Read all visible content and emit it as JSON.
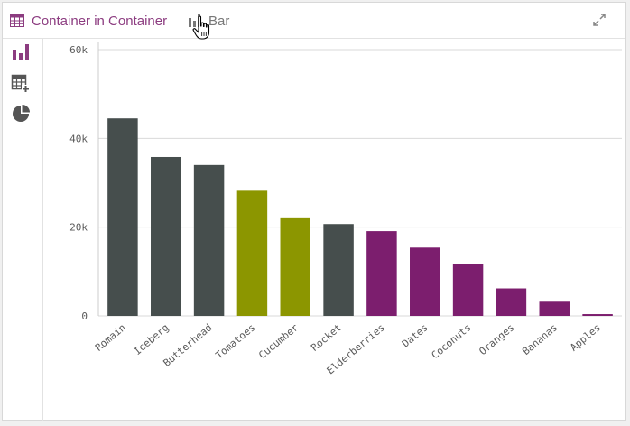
{
  "header": {
    "container_tab_label": "Container in Container",
    "bar_tab_label": "Bar",
    "container_tab_icon": "table-icon",
    "bar_tab_icon": "bar-chart-icon",
    "expand_icon": "expand-icon",
    "cursor_icon": "hand-pointer-icon"
  },
  "sidebar": {
    "items": [
      {
        "icon": "bar-chart-icon",
        "active": true
      },
      {
        "icon": "table-add-icon",
        "active": false
      },
      {
        "icon": "pie-chart-icon",
        "active": false
      }
    ]
  },
  "colors": {
    "accent": "#8c3c80",
    "dark_bar": "#464e4d",
    "olive_bar": "#8c9600",
    "purple_bar": "#7c1e6e",
    "grid": "#d9d9d9",
    "icon_gray": "#555555"
  },
  "chart_data": {
    "type": "bar",
    "categories": [
      "Romain",
      "Iceberg",
      "Butterhead",
      "Tomatoes",
      "Cucumber",
      "Rocket",
      "Elderberries",
      "Dates",
      "Coconuts",
      "Oranges",
      "Bananas",
      "Apples"
    ],
    "values": [
      44500,
      35800,
      34000,
      28200,
      22200,
      20700,
      19100,
      15400,
      11700,
      6200,
      3200,
      400
    ],
    "bar_colors": [
      "#464e4d",
      "#464e4d",
      "#464e4d",
      "#8c9600",
      "#8c9600",
      "#464e4d",
      "#7c1e6e",
      "#7c1e6e",
      "#7c1e6e",
      "#7c1e6e",
      "#7c1e6e",
      "#7c1e6e"
    ],
    "y_ticks": [
      0,
      20000,
      40000,
      60000
    ],
    "y_tick_labels": [
      "0",
      "20k",
      "40k",
      "60k"
    ],
    "ylim": [
      0,
      60000
    ],
    "grid": true,
    "title": "",
    "xlabel": "",
    "ylabel": ""
  }
}
